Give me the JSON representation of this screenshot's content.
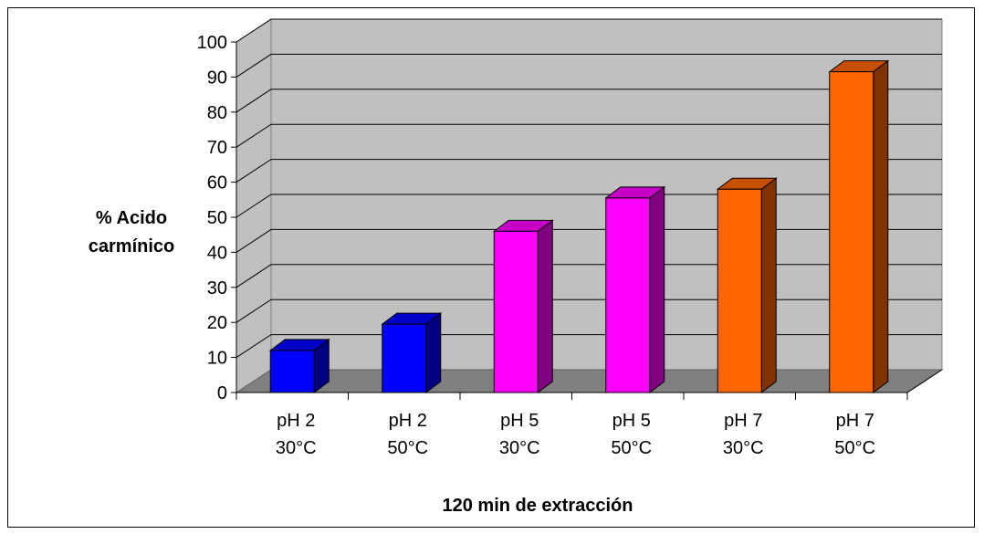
{
  "chart_data": {
    "type": "bar",
    "three_d": true,
    "categories": [
      [
        "pH 2",
        "30°C"
      ],
      [
        "pH 2",
        "50°C"
      ],
      [
        "pH 5",
        "30°C"
      ],
      [
        "pH 5",
        "50°C"
      ],
      [
        "pH 7",
        "30°C"
      ],
      [
        "pH 7",
        "50°C"
      ]
    ],
    "values": [
      12,
      19.5,
      46,
      55.5,
      58,
      91.5
    ],
    "colors": [
      "#0000ff",
      "#0000ff",
      "#ff00ff",
      "#ff00ff",
      "#ff6600",
      "#ff6600"
    ],
    "ylabel": [
      "% Acido",
      "carmínico"
    ],
    "xlabel": "120 min de extracción",
    "ylim": [
      0,
      100
    ],
    "yticks": [
      0,
      10,
      20,
      30,
      40,
      50,
      60,
      70,
      80,
      90,
      100
    ],
    "grid": true,
    "wall_color": "#c0c0c0",
    "floor_color": "#808080",
    "legend": "none"
  }
}
